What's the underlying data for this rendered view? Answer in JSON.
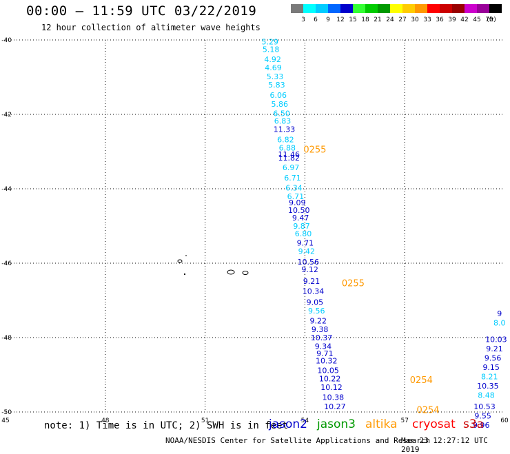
{
  "header": {
    "title": "00:00 – 11:59 UTC 03/22/2019",
    "subtitle": "12 hour collection of altimeter wave heights"
  },
  "legend": {
    "unit": "(ft)",
    "bins": [
      {
        "label": "3",
        "color": "#7a7a7a"
      },
      {
        "label": "6",
        "color": "#00ffff"
      },
      {
        "label": "9",
        "color": "#00ccff"
      },
      {
        "label": "12",
        "color": "#0066ff"
      },
      {
        "label": "15",
        "color": "#0000cc"
      },
      {
        "label": "18",
        "color": "#33ff33"
      },
      {
        "label": "21",
        "color": "#00cc00"
      },
      {
        "label": "24",
        "color": "#009900"
      },
      {
        "label": "27",
        "color": "#ffff00"
      },
      {
        "label": "30",
        "color": "#ffcc00"
      },
      {
        "label": "33",
        "color": "#ff9900"
      },
      {
        "label": "36",
        "color": "#ff0000"
      },
      {
        "label": "39",
        "color": "#cc0000"
      },
      {
        "label": "42",
        "color": "#990000"
      },
      {
        "label": "45",
        "color": "#cc00cc"
      },
      {
        "label": "70",
        "color": "#990099"
      },
      {
        "label": "",
        "color": "#000000"
      }
    ]
  },
  "footer": {
    "note": "note: 1) Time is in UTC; 2) SWH is in feet",
    "left": "NOAA/NESDIS Center for Satellite Applications and Research",
    "right": "Mar 23 12:27:12 UTC 2019"
  },
  "satellites": [
    {
      "name": "jason2",
      "color": "#0000cc"
    },
    {
      "name": "jason3",
      "color": "#009900"
    },
    {
      "name": "altika",
      "color": "#ff9900"
    },
    {
      "name": "cryosat",
      "color": "#ff0000"
    },
    {
      "name": "s3a",
      "color": "#cc0000"
    }
  ],
  "chart_data": {
    "type": "scatter",
    "xlim": [
      45,
      60
    ],
    "ylim": [
      -50,
      -40
    ],
    "xticks": [
      "45",
      "48",
      "51",
      "54",
      "57",
      "60"
    ],
    "yticks": [
      "-40",
      "-42",
      "-44",
      "-46",
      "-48",
      "-50"
    ],
    "grid": true,
    "colors": {
      "light": "#00ccff",
      "dark": "#0000cc",
      "altika": "#ff9900"
    },
    "series": [
      {
        "name": "jason2",
        "points": [
          {
            "x": 52.95,
            "y": -40.05,
            "label": "5.29",
            "c": "light"
          },
          {
            "x": 52.98,
            "y": -40.25,
            "label": "5.18",
            "c": "light"
          },
          {
            "x": 53.03,
            "y": -40.52,
            "label": "4.92",
            "c": "light"
          },
          {
            "x": 53.05,
            "y": -40.74,
            "label": "4.69",
            "c": "light"
          },
          {
            "x": 53.1,
            "y": -40.98,
            "label": "5.33",
            "c": "light"
          },
          {
            "x": 53.15,
            "y": -41.2,
            "label": "5.83",
            "c": "light"
          },
          {
            "x": 53.2,
            "y": -41.48,
            "label": "6.06",
            "c": "light"
          },
          {
            "x": 53.24,
            "y": -41.72,
            "label": "5.86",
            "c": "light"
          },
          {
            "x": 53.3,
            "y": -41.97,
            "label": "6.50",
            "c": "light"
          },
          {
            "x": 53.33,
            "y": -42.18,
            "label": "6.83",
            "c": "light"
          },
          {
            "x": 53.38,
            "y": -42.4,
            "label": "11.33",
            "c": "dark"
          },
          {
            "x": 53.42,
            "y": -42.68,
            "label": "6.82",
            "c": "light"
          },
          {
            "x": 53.47,
            "y": -42.9,
            "label": "6.88",
            "c": "light"
          },
          {
            "x": 53.52,
            "y": -43.07,
            "label": "11.46",
            "c": "dark"
          },
          {
            "x": 53.52,
            "y": -43.17,
            "label": "11.82",
            "c": "dark"
          },
          {
            "x": 53.58,
            "y": -43.43,
            "label": "6.97",
            "c": "light"
          },
          {
            "x": 53.63,
            "y": -43.7,
            "label": "6.71",
            "c": "light"
          },
          {
            "x": 53.67,
            "y": -43.97,
            "label": "6.34",
            "c": "light"
          },
          {
            "x": 53.72,
            "y": -44.2,
            "label": "6.71",
            "c": "light"
          },
          {
            "x": 53.77,
            "y": -44.37,
            "label": "9.09",
            "c": "dark"
          },
          {
            "x": 53.82,
            "y": -44.57,
            "label": "10.50",
            "c": "dark"
          },
          {
            "x": 53.87,
            "y": -44.78,
            "label": "9.47",
            "c": "dark"
          },
          {
            "x": 53.9,
            "y": -45.0,
            "label": "9.87",
            "c": "light"
          },
          {
            "x": 53.95,
            "y": -45.2,
            "label": "6.80",
            "c": "light"
          },
          {
            "x": 54.01,
            "y": -45.45,
            "label": "9.71",
            "c": "dark"
          },
          {
            "x": 54.05,
            "y": -45.68,
            "label": "9.42",
            "c": "light"
          },
          {
            "x": 54.1,
            "y": -45.96,
            "label": "10.56",
            "c": "dark"
          },
          {
            "x": 54.15,
            "y": -46.17,
            "label": "9.12",
            "c": "dark"
          },
          {
            "x": 54.2,
            "y": -46.48,
            "label": "9.21",
            "c": "dark"
          },
          {
            "x": 54.25,
            "y": -46.75,
            "label": "10.34",
            "c": "dark"
          },
          {
            "x": 54.3,
            "y": -47.05,
            "label": "9.05",
            "c": "dark"
          },
          {
            "x": 54.35,
            "y": -47.28,
            "label": "9.56",
            "c": "light"
          },
          {
            "x": 54.4,
            "y": -47.55,
            "label": "9.22",
            "c": "dark"
          },
          {
            "x": 54.45,
            "y": -47.78,
            "label": "9.38",
            "c": "dark"
          },
          {
            "x": 54.5,
            "y": -48.0,
            "label": "10.37",
            "c": "dark"
          },
          {
            "x": 54.55,
            "y": -48.23,
            "label": "9.34",
            "c": "dark"
          },
          {
            "x": 54.6,
            "y": -48.43,
            "label": "9.71",
            "c": "dark"
          },
          {
            "x": 54.65,
            "y": -48.62,
            "label": "10.32",
            "c": "dark"
          },
          {
            "x": 54.7,
            "y": -48.88,
            "label": "10.05",
            "c": "dark"
          },
          {
            "x": 54.75,
            "y": -49.1,
            "label": "10.22",
            "c": "dark"
          },
          {
            "x": 54.8,
            "y": -49.33,
            "label": "10.12",
            "c": "dark"
          },
          {
            "x": 54.85,
            "y": -49.6,
            "label": "10.38",
            "c": "dark"
          },
          {
            "x": 54.9,
            "y": -49.85,
            "label": "10.27",
            "c": "dark"
          },
          {
            "x": 59.85,
            "y": -47.35,
            "label": "9",
            "c": "dark"
          },
          {
            "x": 59.85,
            "y": -47.6,
            "label": "8.0",
            "c": "light"
          },
          {
            "x": 59.75,
            "y": -48.05,
            "label": "10.03",
            "c": "dark"
          },
          {
            "x": 59.7,
            "y": -48.3,
            "label": "9.21",
            "c": "dark"
          },
          {
            "x": 59.65,
            "y": -48.55,
            "label": "9.56",
            "c": "dark"
          },
          {
            "x": 59.6,
            "y": -48.8,
            "label": "9.15",
            "c": "dark"
          },
          {
            "x": 59.55,
            "y": -49.05,
            "label": "8.21",
            "c": "light"
          },
          {
            "x": 59.5,
            "y": -49.3,
            "label": "10.35",
            "c": "dark"
          },
          {
            "x": 59.45,
            "y": -49.55,
            "label": "8.48",
            "c": "light"
          },
          {
            "x": 59.4,
            "y": -49.85,
            "label": "10.53",
            "c": "dark"
          },
          {
            "x": 59.35,
            "y": -50.1,
            "label": "9.55",
            "c": "dark"
          },
          {
            "x": 59.3,
            "y": -50.35,
            "label": "9.96",
            "c": "dark"
          }
        ]
      },
      {
        "name": "altika",
        "points": [
          {
            "x": 54.3,
            "y": -42.95,
            "label": "0255",
            "c": "altika"
          },
          {
            "x": 55.45,
            "y": -46.55,
            "label": "0255",
            "c": "altika"
          },
          {
            "x": 57.5,
            "y": -49.15,
            "label": "0254",
            "c": "altika"
          },
          {
            "x": 57.7,
            "y": -49.95,
            "label": "0254",
            "c": "altika"
          }
        ]
      }
    ]
  }
}
